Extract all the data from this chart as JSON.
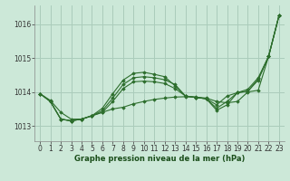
{
  "title": "Graphe pression niveau de la mer (hPa)",
  "background_color": "#cce8d8",
  "grid_color": "#aaccbb",
  "line_color": "#2d6e2d",
  "xlim": [
    -0.5,
    23.5
  ],
  "ylim": [
    1012.55,
    1016.55
  ],
  "yticks": [
    1013,
    1014,
    1015,
    1016
  ],
  "xticks": [
    0,
    1,
    2,
    3,
    4,
    5,
    6,
    7,
    8,
    9,
    10,
    11,
    12,
    13,
    14,
    15,
    16,
    17,
    18,
    19,
    20,
    21,
    22,
    23
  ],
  "series": [
    [
      1013.95,
      1013.75,
      1013.4,
      1013.2,
      1013.2,
      1013.3,
      1013.4,
      1013.5,
      1013.55,
      1013.65,
      1013.72,
      1013.78,
      1013.82,
      1013.85,
      1013.86,
      1013.85,
      1013.82,
      1013.72,
      1013.68,
      1013.72,
      1014.0,
      1014.05,
      1015.05,
      1016.25
    ],
    [
      1013.95,
      1013.72,
      1013.2,
      1013.15,
      1013.2,
      1013.3,
      1013.4,
      1013.72,
      1014.1,
      1014.3,
      1014.32,
      1014.3,
      1014.25,
      1014.1,
      1013.88,
      1013.84,
      1013.8,
      1013.62,
      1013.88,
      1013.98,
      1014.02,
      1014.35,
      1015.05,
      1016.25
    ],
    [
      1013.95,
      1013.72,
      1013.2,
      1013.15,
      1013.2,
      1013.3,
      1013.45,
      1013.82,
      1014.22,
      1014.42,
      1014.45,
      1014.42,
      1014.36,
      1014.22,
      1013.88,
      1013.84,
      1013.8,
      1013.52,
      1013.72,
      1013.98,
      1014.02,
      1014.38,
      1015.05,
      1016.25
    ],
    [
      1013.95,
      1013.72,
      1013.2,
      1013.15,
      1013.2,
      1013.3,
      1013.52,
      1013.95,
      1014.35,
      1014.55,
      1014.58,
      1014.52,
      1014.45,
      1014.18,
      1013.88,
      1013.84,
      1013.8,
      1013.46,
      1013.62,
      1013.98,
      1014.08,
      1014.42,
      1015.05,
      1016.25
    ]
  ]
}
